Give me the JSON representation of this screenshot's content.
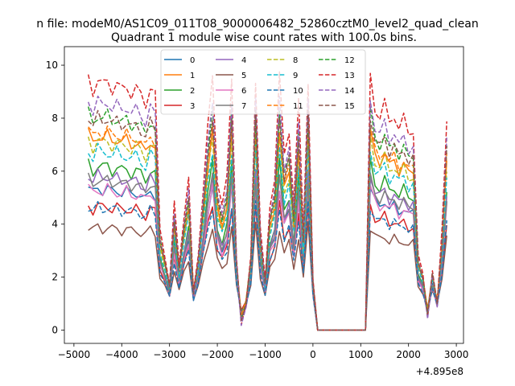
{
  "chart_data": {
    "type": "line",
    "suptitle": "n file: modeM0/AS1C09_011T08_9000006482_52860cztM0_level2_quad_clean",
    "title": "Quadrant 1 module wise count rates with 100.0s bins.",
    "xlabel": "",
    "ylabel": "",
    "x_offset_label": "+4.895e8",
    "xlim": [
      -5200,
      3150
    ],
    "ylim": [
      -0.5,
      10.7
    ],
    "xticks": [
      -5000,
      -4000,
      -3000,
      -2000,
      -1000,
      0,
      1000,
      2000,
      3000
    ],
    "xtick_labels": [
      "−5000",
      "−4000",
      "−3000",
      "−2000",
      "−1000",
      "0",
      "1000",
      "2000",
      "3000"
    ],
    "yticks": [
      0,
      2,
      4,
      6,
      8,
      10
    ],
    "ytick_labels": [
      "0",
      "2",
      "4",
      "6",
      "8",
      "10"
    ],
    "legend_position": "top-center",
    "x": [
      -4700,
      -4600,
      -4500,
      -4400,
      -4300,
      -4200,
      -4100,
      -4000,
      -3900,
      -3800,
      -3700,
      -3600,
      -3500,
      -3400,
      -3300,
      -3200,
      -3100,
      -3000,
      -2900,
      -2800,
      -2700,
      -2600,
      -2500,
      -2400,
      -2300,
      -2200,
      -2100,
      -2000,
      -1900,
      -1800,
      -1700,
      -1600,
      -1500,
      -1400,
      -1300,
      -1200,
      -1100,
      -1000,
      -900,
      -800,
      -700,
      -600,
      -500,
      -400,
      -300,
      -200,
      -100,
      0,
      100,
      200,
      300,
      400,
      500,
      600,
      700,
      800,
      900,
      1000,
      1100,
      1200,
      1300,
      1400,
      1500,
      1600,
      1700,
      1800,
      1900,
      2000,
      2100,
      2200,
      2300,
      2400,
      2500,
      2600,
      2700,
      2800
    ],
    "pattern": [
      1.0,
      0.95,
      1.0,
      0.97,
      0.99,
      0.96,
      0.98,
      0.95,
      0.97,
      0.94,
      0.96,
      0.93,
      0.9,
      0.97,
      0.93,
      0.4,
      0.3,
      0.18,
      0.5,
      0.26,
      0.45,
      0.6,
      0.15,
      0.3,
      0.55,
      0.8,
      1.0,
      0.6,
      0.5,
      0.6,
      1.0,
      0.3,
      0.02,
      0.1,
      0.3,
      1.0,
      0.4,
      0.2,
      0.5,
      0.6,
      1.0,
      0.7,
      0.8,
      0.5,
      0.9,
      0.4,
      1.0,
      0.2,
      0.0,
      0.0,
      0.0,
      0.0,
      0.0,
      0.0,
      0.0,
      0.0,
      0.0,
      0.0,
      0.0,
      1.0,
      0.88,
      0.85,
      0.9,
      0.82,
      0.86,
      0.8,
      0.84,
      0.78,
      0.8,
      0.3,
      0.22,
      0.05,
      0.24,
      0.1,
      0.4,
      0.85
    ],
    "series": [
      {
        "name": "0",
        "color": "#1f77b4",
        "style": "solid",
        "base": 6.0,
        "floor": 0.8,
        "amp": 0.2,
        "phase": 0.0
      },
      {
        "name": "1",
        "color": "#ff7f0e",
        "style": "solid",
        "base": 7.8,
        "floor": 0.9,
        "amp": 0.25,
        "phase": 1.1
      },
      {
        "name": "2",
        "color": "#2ca02c",
        "style": "solid",
        "base": 6.6,
        "floor": 0.9,
        "amp": 0.25,
        "phase": 2.2
      },
      {
        "name": "3",
        "color": "#d62728",
        "style": "solid",
        "base": 5.4,
        "floor": 0.75,
        "amp": 0.2,
        "phase": 3.3
      },
      {
        "name": "4",
        "color": "#9467bd",
        "style": "solid",
        "base": 6.2,
        "floor": 0.9,
        "amp": 0.2,
        "phase": 4.4
      },
      {
        "name": "5",
        "color": "#8c564b",
        "style": "solid",
        "base": 4.6,
        "floor": 0.7,
        "amp": 0.2,
        "phase": 5.5
      },
      {
        "name": "6",
        "color": "#e377c2",
        "style": "solid",
        "base": 5.8,
        "floor": 0.85,
        "amp": 0.25,
        "phase": 0.6
      },
      {
        "name": "7",
        "color": "#7f7f7f",
        "style": "solid",
        "base": 6.2,
        "floor": 0.85,
        "amp": 0.2,
        "phase": 1.7
      },
      {
        "name": "8",
        "color": "#bcbd22",
        "style": "dashed",
        "base": 7.6,
        "floor": 0.9,
        "amp": 0.25,
        "phase": 2.8
      },
      {
        "name": "9",
        "color": "#17becf",
        "style": "dashed",
        "base": 7.2,
        "floor": 0.9,
        "amp": 0.25,
        "phase": 3.9
      },
      {
        "name": "10",
        "color": "#1f77b4",
        "style": "dashed",
        "base": 5.2,
        "floor": 0.8,
        "amp": 0.2,
        "phase": 5.0
      },
      {
        "name": "11",
        "color": "#ff7f0e",
        "style": "dashed",
        "base": 8.0,
        "floor": 0.9,
        "amp": 0.25,
        "phase": 0.3
      },
      {
        "name": "12",
        "color": "#2ca02c",
        "style": "dashed",
        "base": 8.4,
        "floor": 0.95,
        "amp": 0.25,
        "phase": 1.4
      },
      {
        "name": "13",
        "color": "#d62728",
        "style": "dashed",
        "base": 9.5,
        "floor": 1.0,
        "amp": 0.25,
        "phase": 2.5
      },
      {
        "name": "14",
        "color": "#9467bd",
        "style": "dashed",
        "base": 8.7,
        "floor": 1.0,
        "amp": 0.2,
        "phase": 3.6
      },
      {
        "name": "15",
        "color": "#8c564b",
        "style": "dashed",
        "base": 8.3,
        "floor": 0.95,
        "amp": 0.2,
        "phase": 4.7
      }
    ]
  }
}
